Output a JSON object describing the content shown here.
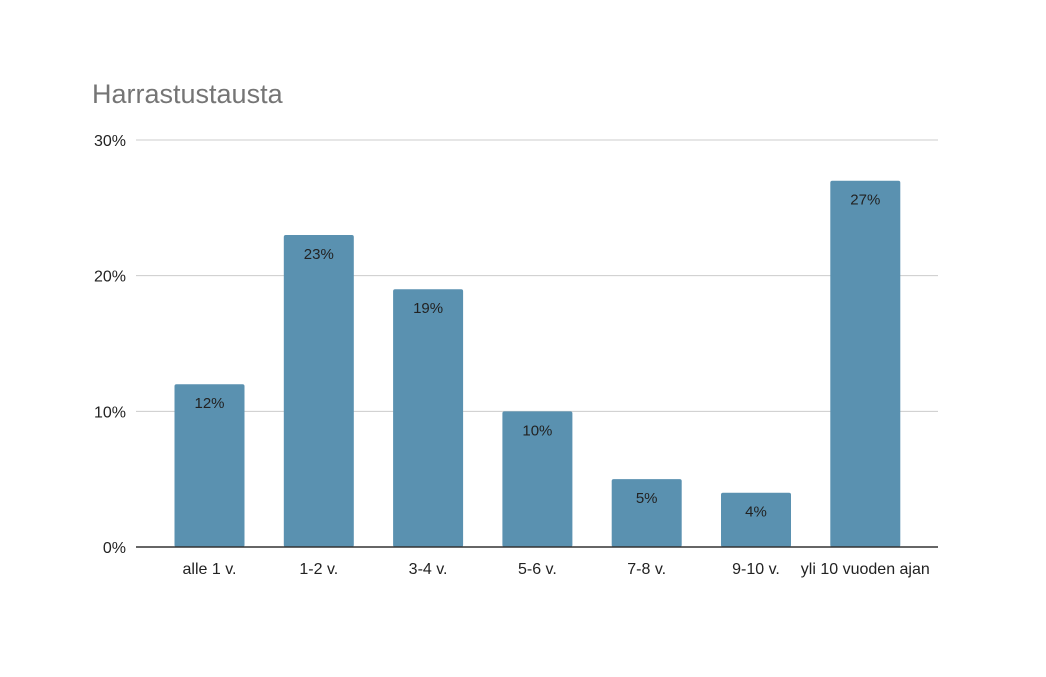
{
  "chart_data": {
    "type": "bar",
    "title": "Harrastustausta",
    "xlabel": "",
    "ylabel": "",
    "categories": [
      "alle 1 v.",
      "1-2 v.",
      "3-4 v.",
      "5-6 v.",
      "7-8 v.",
      "9-10 v.",
      "yli 10 vuoden ajan"
    ],
    "values": [
      12,
      23,
      19,
      10,
      5,
      4,
      27
    ],
    "data_labels": [
      "12%",
      "23%",
      "19%",
      "10%",
      "5%",
      "4%",
      "27%"
    ],
    "ylim": [
      0,
      30
    ],
    "yticks": [
      0,
      10,
      20,
      30
    ],
    "ytick_labels": [
      "0%",
      "10%",
      "20%",
      "30%"
    ],
    "grid": true,
    "legend": "none",
    "colors": {
      "bar": "#5a91b0",
      "grid": "#cccccc",
      "axis": "#333333",
      "title": "#757575"
    }
  }
}
